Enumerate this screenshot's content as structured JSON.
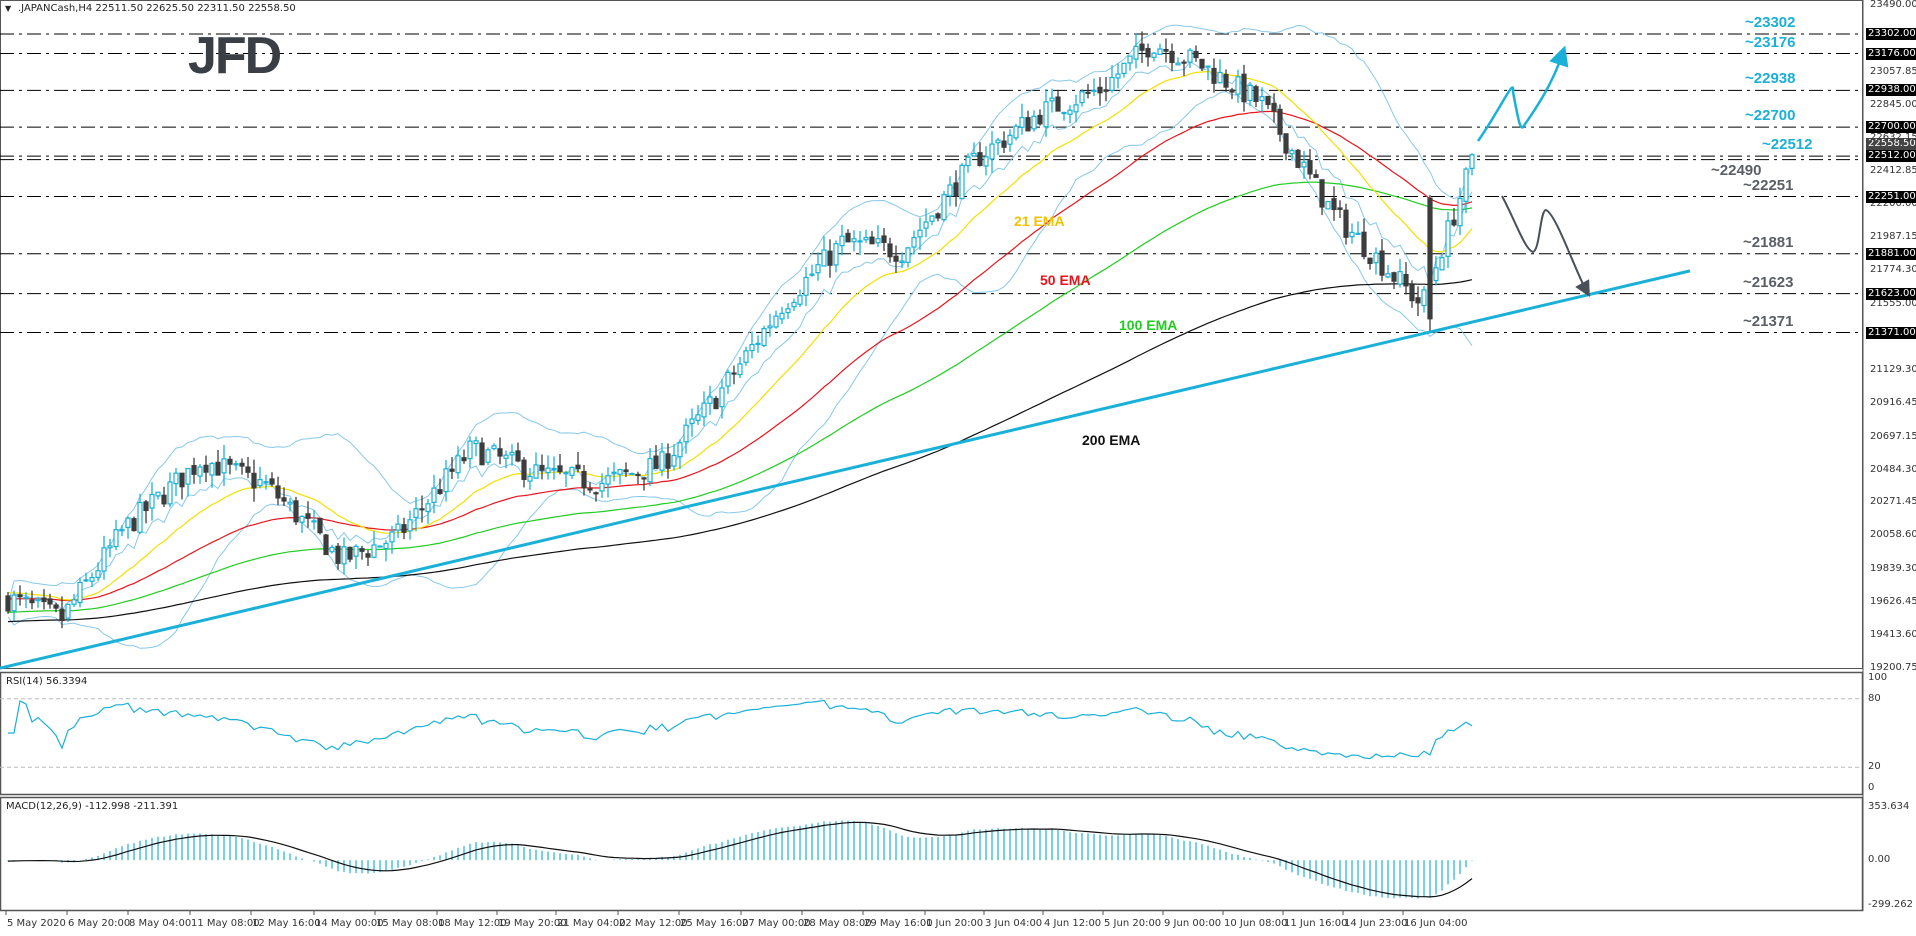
{
  "header": {
    "symbol_caption": ".JAPANCash,H4  22511.50 22625.50 22311.50 22558.50",
    "logo_text": "JFD"
  },
  "price_axis": {
    "ticks": [
      "23490.00",
      "23057.85",
      "22845.00",
      "22632.15",
      "22412.85",
      "22200.00",
      "21987.15",
      "21774.30",
      "21555.00",
      "21342.15",
      "21129.30",
      "20916.45",
      "20697.15",
      "20484.30",
      "20271.45",
      "20058.60",
      "19839.30",
      "19626.45",
      "19413.60",
      "19200.75"
    ],
    "highlighted": [
      "23302.00",
      "23176.00",
      "22938.00",
      "22700.00",
      "22512.00",
      "22251.00",
      "21881.00",
      "21623.00",
      "21371.00"
    ],
    "current_price": "22558.50"
  },
  "levels": [
    {
      "label": "~23302",
      "value": 23302,
      "color": "#1ab0d8"
    },
    {
      "label": "~23176",
      "value": 23176,
      "color": "#1ab0d8"
    },
    {
      "label": "~22938",
      "value": 22938,
      "color": "#1ab0d8"
    },
    {
      "label": "~22700",
      "value": 22700,
      "color": "#1ab0d8"
    },
    {
      "label": "~22512",
      "value": 22512,
      "color": "#1ab0d8"
    },
    {
      "label": "~22490",
      "value": 22490,
      "color": "#5a5f66"
    },
    {
      "label": "~22251",
      "value": 22251,
      "color": "#5a5f66"
    },
    {
      "label": "~21881",
      "value": 21881,
      "color": "#5a5f66"
    },
    {
      "label": "~21623",
      "value": 21623,
      "color": "#5a5f66"
    },
    {
      "label": "~21371",
      "value": 21371,
      "color": "#5a5f66"
    }
  ],
  "ema_labels": [
    {
      "label": "21 EMA",
      "color": "#f2c200"
    },
    {
      "label": "50 EMA",
      "color": "#e8141c"
    },
    {
      "label": "100 EMA",
      "color": "#22cc22"
    },
    {
      "label": "200 EMA",
      "color": "#111111"
    }
  ],
  "rsi": {
    "caption": "RSI(14) 56.3394",
    "ticks": [
      "100",
      "80",
      "20",
      "0"
    ]
  },
  "macd": {
    "caption": "MACD(12,26,9) -112.998 -211.391",
    "ticks": [
      "353.634",
      "0.00",
      "-299.262"
    ]
  },
  "time_axis": {
    "labels": [
      "5 May 2020",
      "6 May 20:00",
      "8 May 04:00",
      "11 May 08:00",
      "12 May 16:00",
      "14 May 00:00",
      "15 May 08:00",
      "18 May 12:00",
      "19 May 20:00",
      "21 May 04:00",
      "22 May 12:00",
      "25 May 16:00",
      "27 May 00:00",
      "28 May 08:00",
      "29 May 16:00",
      "1 Jun 20:00",
      "3 Jun 04:00",
      "4 Jun 12:00",
      "5 Jun 20:00",
      "9 Jun 00:00",
      "10 Jun 08:00",
      "11 Jun 16:00",
      "14 Jun 23:00",
      "16 Jun 04:00"
    ]
  },
  "colors": {
    "bull_candle": "#1ab0d8",
    "bear_candle": "#3d3d3d",
    "bollinger": "#87c8ea",
    "trendline": "#1ab0d8",
    "bullish_arrow": "#1ab0d8",
    "bearish_arrow": "#4a5058"
  },
  "chart_data": {
    "type": "candlestick",
    "title": ".JAPANCash,H4",
    "instrument": ".JAPANCash",
    "timeframe": "H4",
    "last_bar": {
      "open": 22511.5,
      "high": 22625.5,
      "low": 22311.5,
      "close": 22558.5
    },
    "ylim": [
      19200.75,
      23490.0
    ],
    "x_labels": [
      "5 May 2020",
      "6 May 20:00",
      "8 May 04:00",
      "11 May 08:00",
      "12 May 16:00",
      "14 May 00:00",
      "15 May 08:00",
      "18 May 12:00",
      "19 May 20:00",
      "21 May 04:00",
      "22 May 12:00",
      "25 May 16:00",
      "27 May 00:00",
      "28 May 08:00",
      "29 May 16:00",
      "1 Jun 20:00",
      "3 Jun 04:00",
      "4 Jun 12:00",
      "5 Jun 20:00",
      "9 Jun 00:00",
      "10 Jun 08:00",
      "11 Jun 16:00",
      "14 Jun 23:00",
      "16 Jun 04:00"
    ],
    "close_path_approx": [
      {
        "x": "5 May 2020",
        "y": 19650
      },
      {
        "x": "6 May 20:00",
        "y": 19750
      },
      {
        "x": "8 May 04:00",
        "y": 20150
      },
      {
        "x": "11 May 08:00",
        "y": 20550
      },
      {
        "x": "12 May 16:00",
        "y": 20350
      },
      {
        "x": "14 May 00:00",
        "y": 19850
      },
      {
        "x": "15 May 08:00",
        "y": 20050
      },
      {
        "x": "18 May 12:00",
        "y": 20600
      },
      {
        "x": "19 May 20:00",
        "y": 20500
      },
      {
        "x": "21 May 04:00",
        "y": 20450
      },
      {
        "x": "22 May 12:00",
        "y": 20500
      },
      {
        "x": "25 May 16:00",
        "y": 21000
      },
      {
        "x": "27 May 00:00",
        "y": 21500
      },
      {
        "x": "28 May 08:00",
        "y": 21950
      },
      {
        "x": "29 May 16:00",
        "y": 21950
      },
      {
        "x": "1 Jun 20:00",
        "y": 22500
      },
      {
        "x": "3 Jun 04:00",
        "y": 22750
      },
      {
        "x": "4 Jun 12:00",
        "y": 22900
      },
      {
        "x": "5 Jun 20:00",
        "y": 23150
      },
      {
        "x": "9 Jun 00:00",
        "y": 23000
      },
      {
        "x": "10 Jun 08:00",
        "y": 22850
      },
      {
        "x": "11 Jun 16:00",
        "y": 22100
      },
      {
        "x": "14 Jun 23:00",
        "y": 21650
      },
      {
        "x": "16 Jun 04:00",
        "y": 22558.5
      }
    ],
    "horizontal_levels": [
      23302,
      23176,
      22938,
      22700,
      22512,
      22490,
      22251,
      21881,
      21623,
      21371
    ],
    "indicators": {
      "ema": [
        {
          "name": "21 EMA",
          "color": "#f2c200",
          "last_approx": 22050
        },
        {
          "name": "50 EMA",
          "color": "#e8141c",
          "last_approx": 22300
        },
        {
          "name": "100 EMA",
          "color": "#22cc22",
          "last_approx": 22050
        },
        {
          "name": "200 EMA",
          "color": "#111111",
          "last_approx": 21430
        }
      ],
      "bollinger_bands": {
        "color": "#87c8ea"
      },
      "trendline": {
        "from": {
          "x": "5 May 2020",
          "y": 19200
        },
        "to": {
          "x": "16 Jun 04:00",
          "y": 21420
        },
        "color": "#1ab0d8"
      },
      "rsi": {
        "period": 14,
        "value": 56.3394,
        "levels": [
          20,
          80
        ],
        "ylim": [
          0,
          100
        ]
      },
      "macd": {
        "params": [
          12,
          26,
          9
        ],
        "main": -112.998,
        "signal": -211.391,
        "ylim": [
          -299.262,
          353.634
        ]
      }
    },
    "annotations": [
      {
        "type": "arrow",
        "direction": "up",
        "color": "#1ab0d8",
        "path": "22560 -> 22938 -> 22700 -> 23176"
      },
      {
        "type": "arrow",
        "direction": "down",
        "color": "#4a5058",
        "path": "22251 -> 21881 -> 22100 -> 21623"
      }
    ]
  }
}
